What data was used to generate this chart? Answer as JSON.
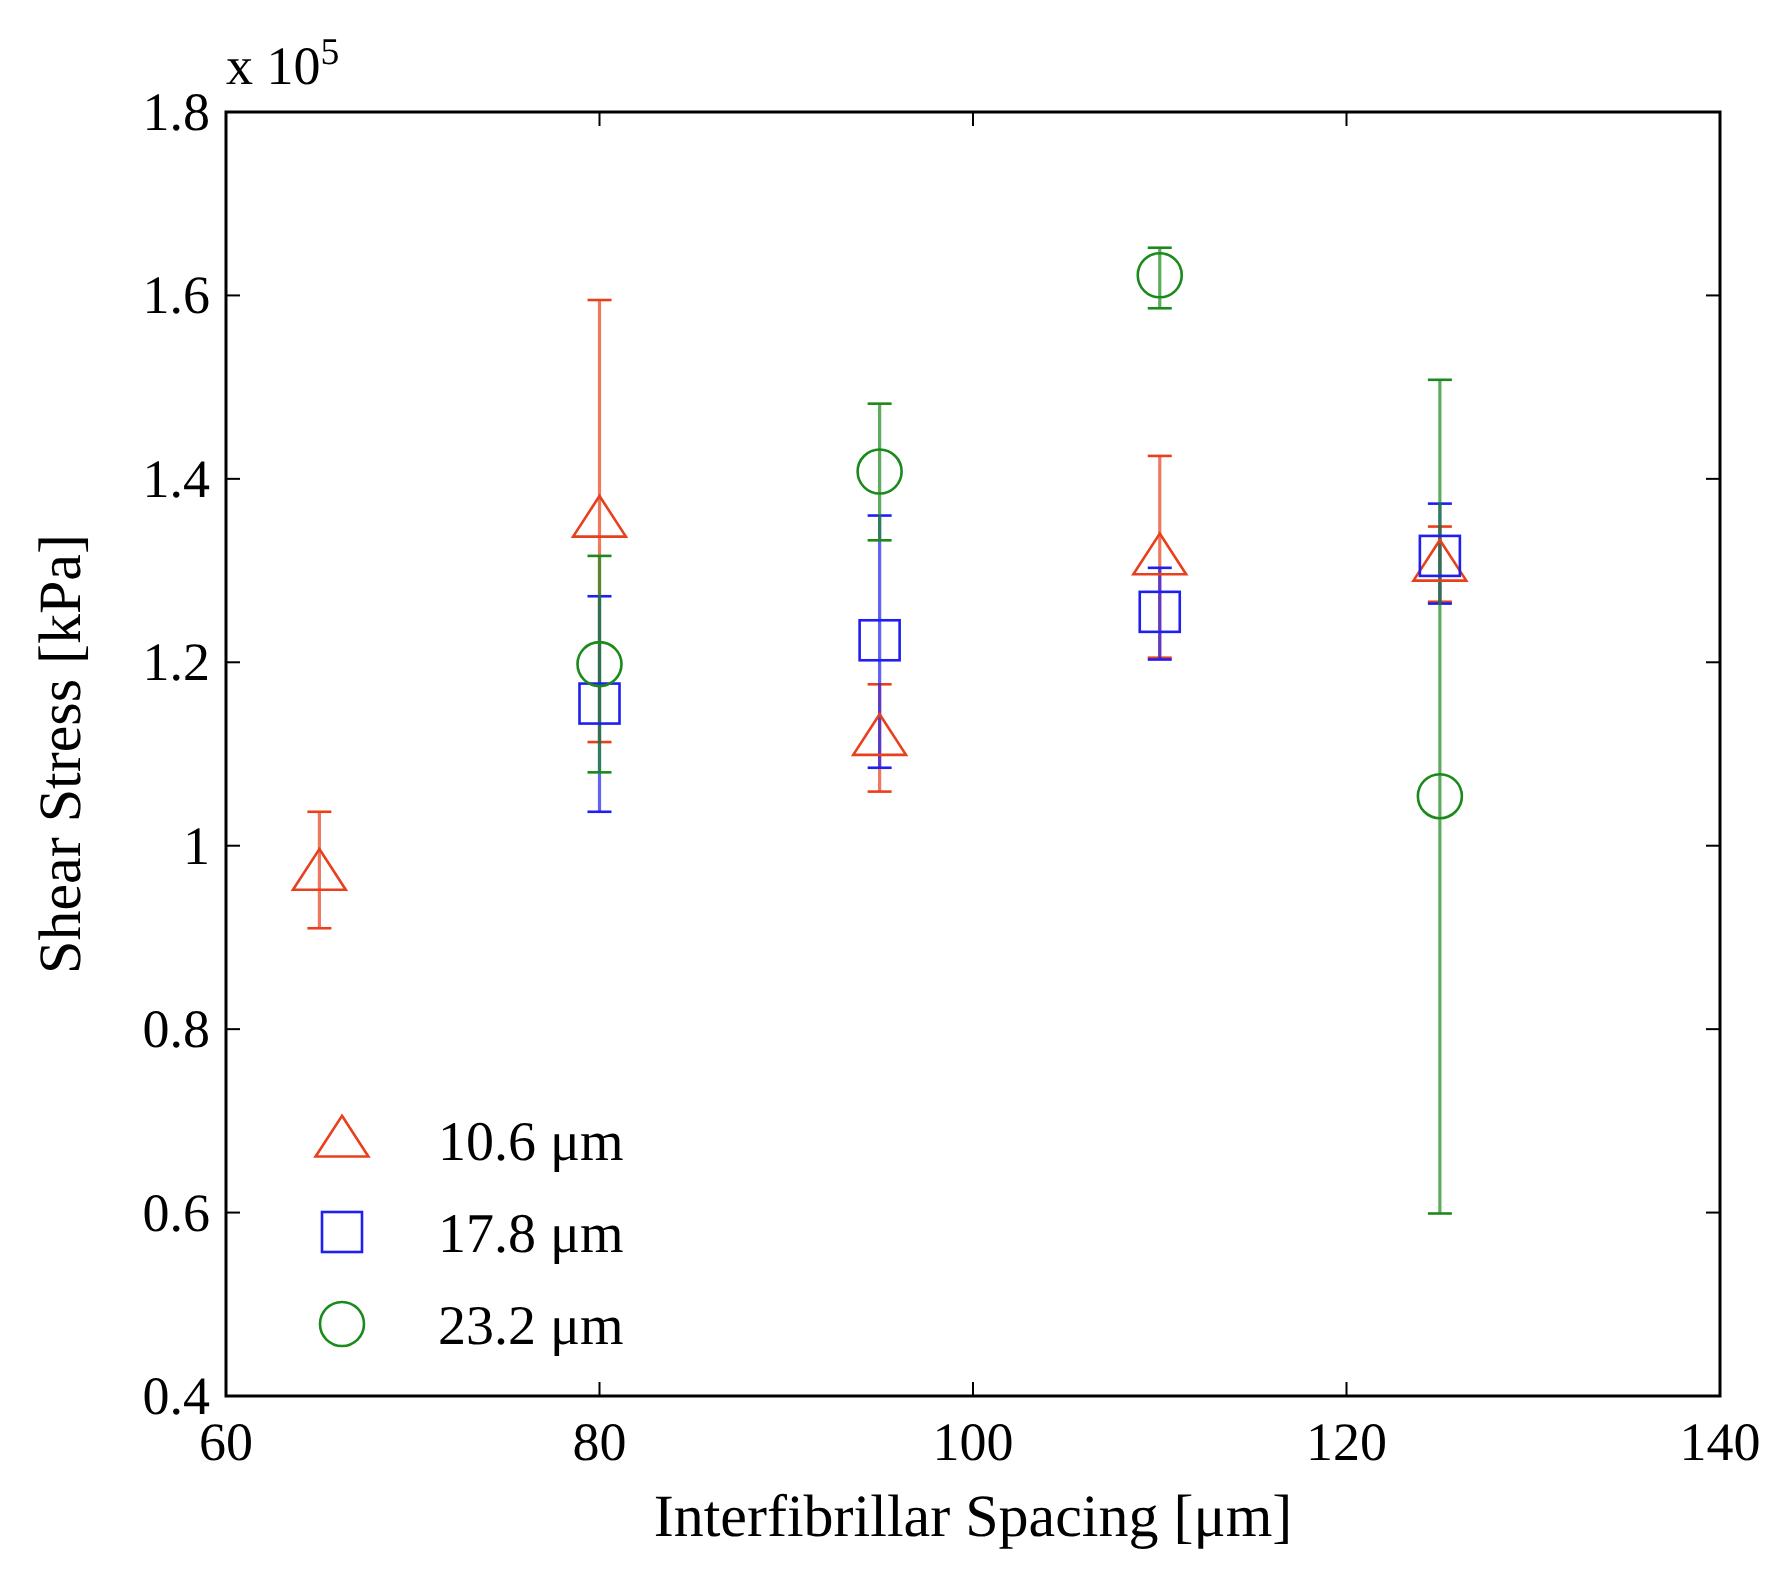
{
  "chart_data": {
    "type": "scatter",
    "xlabel": "Interfibrillar Spacing [μm]",
    "ylabel": "Shear Stress [kPa]",
    "annotations": [
      "x 10$^{5}$"
    ],
    "xlim": [
      60,
      140
    ],
    "xticks": [
      60,
      80,
      100,
      120,
      140
    ],
    "ylim": [
      0.4,
      1.8
    ],
    "yticks": [
      0.4,
      0.6,
      0.8,
      1,
      1.2,
      1.4,
      1.6,
      1.8
    ],
    "grid": false,
    "legend": "bottom left",
    "series": [
      {
        "name": "10.6 μm",
        "color": "#e8401c",
        "marker": "triangle",
        "x": [
          65,
          80,
          95,
          110,
          125
        ],
        "values": [
          0.97,
          1.355,
          1.117,
          1.314,
          1.307
        ],
        "errors": [
          [
            0.91,
            1.037
          ],
          [
            1.113,
            1.595
          ],
          [
            1.059,
            1.176
          ],
          [
            1.205,
            1.425
          ],
          [
            1.266,
            1.348
          ]
        ]
      },
      {
        "name": "17.8 μm",
        "color": "#1f1fef",
        "marker": "square",
        "x": [
          80,
          95,
          110,
          125
        ],
        "values": [
          1.155,
          1.224,
          1.255,
          1.316
        ],
        "errors": [
          [
            1.037,
            1.272
          ],
          [
            1.085,
            1.36
          ],
          [
            1.203,
            1.303
          ],
          [
            1.264,
            1.373
          ]
        ]
      },
      {
        "name": "23.2 μm",
        "color": "#1a8a1a",
        "marker": "circle",
        "x": [
          80,
          95,
          110,
          125
        ],
        "values": [
          1.198,
          1.408,
          1.622,
          1.054
        ],
        "errors": [
          [
            1.08,
            1.316
          ],
          [
            1.333,
            1.482
          ],
          [
            1.586,
            1.652
          ],
          [
            0.599,
            1.508
          ]
        ]
      }
    ]
  }
}
